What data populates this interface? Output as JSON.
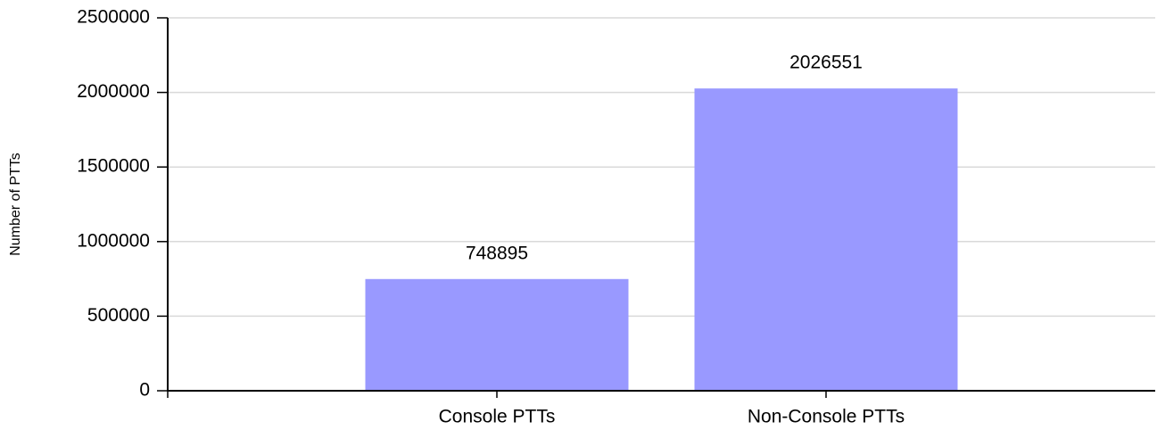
{
  "chart_data": {
    "type": "bar",
    "y_label": "Number of PTTs",
    "categories": [
      "Console PTTs",
      "Non-Console PTTs"
    ],
    "values": [
      748895,
      2026551
    ],
    "color": "#9999ff",
    "ylim": [
      0,
      2500000
    ],
    "yticks": [
      0,
      500000,
      1000000,
      1500000,
      2000000,
      2500000
    ],
    "grid": true
  }
}
